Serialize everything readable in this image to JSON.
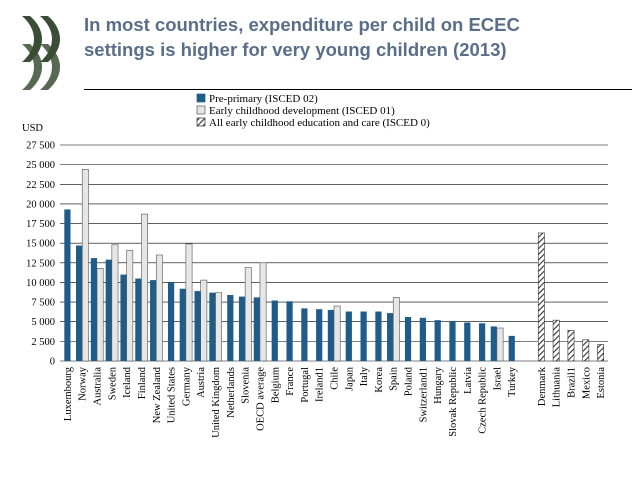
{
  "header": {
    "title_line1": "In most countries, expenditure per child on ECEC",
    "title_line2": "settings is higher for very young children (2013)"
  },
  "logo": {
    "icon": "oecd-chevrons-logo",
    "color": "#3a4d35"
  },
  "colors": {
    "pre_primary": "#1f5c8a",
    "early_childhood_fill": "#e6e6e6",
    "all_ecec_hatch": "#333333"
  },
  "chart_data": {
    "type": "bar",
    "title": "In most countries, expenditure per child on ECEC settings is higher for very young children (2013)",
    "ylabel": "USD",
    "xlabel": "",
    "ylim": [
      0,
      27500
    ],
    "yticks": [
      0,
      2500,
      5000,
      7500,
      10000,
      12500,
      15000,
      17500,
      20000,
      22500,
      25000,
      27500
    ],
    "ytick_labels": [
      "0",
      "2 500",
      "5 000",
      "7 500",
      "10 000",
      "12 500",
      "15 000",
      "17 500",
      "20 000",
      "22 500",
      "25 000",
      "27 500"
    ],
    "grid": true,
    "legend_position": "top-center",
    "categories": [
      "Luxembourg",
      "Norway",
      "Australia",
      "Sweden",
      "Iceland",
      "Finland",
      "New Zealand",
      "United States",
      "Germany",
      "Austria",
      "United Kingdom",
      "Netherlands",
      "Slovenia",
      "OECD average",
      "Belgium",
      "France",
      "Portugal",
      "Ireland1",
      "Chile",
      "Japan",
      "Italy",
      "Korea",
      "Spain",
      "Poland",
      "Switzerland1",
      "Hungary",
      "Slovak Republic",
      "Latvia",
      "Czech Republic",
      "Israel",
      "Turkey",
      "",
      "Denmark",
      "Lithuania",
      "Brazil1",
      "Mexico",
      "Estonia"
    ],
    "series": [
      {
        "name": "Pre-primary (ISCED 02)",
        "style": "solid",
        "values": [
          19300,
          14700,
          13100,
          12900,
          11000,
          10500,
          10300,
          10000,
          9200,
          8900,
          8700,
          8400,
          8200,
          8100,
          7700,
          7600,
          6700,
          6600,
          6500,
          6300,
          6300,
          6300,
          6100,
          5600,
          5500,
          5200,
          5100,
          4900,
          4800,
          4400,
          3200,
          null,
          null,
          null,
          null,
          null,
          null
        ]
      },
      {
        "name": "Early childhood development (ISCED 01)",
        "style": "light",
        "values": [
          null,
          24400,
          11800,
          14800,
          14100,
          18700,
          13500,
          null,
          14900,
          10300,
          8700,
          null,
          11900,
          12500,
          null,
          null,
          null,
          null,
          7000,
          null,
          null,
          null,
          8100,
          null,
          null,
          null,
          null,
          null,
          null,
          4200,
          null,
          null,
          null,
          null,
          null,
          null,
          null
        ]
      },
      {
        "name": "All early childhood education and care (ISCED 0)",
        "style": "hatched",
        "values": [
          null,
          null,
          null,
          null,
          null,
          null,
          null,
          null,
          null,
          null,
          null,
          null,
          null,
          null,
          null,
          null,
          null,
          null,
          null,
          null,
          null,
          null,
          null,
          null,
          null,
          null,
          null,
          null,
          null,
          null,
          null,
          null,
          16300,
          5200,
          3900,
          2700,
          2100
        ]
      }
    ]
  }
}
